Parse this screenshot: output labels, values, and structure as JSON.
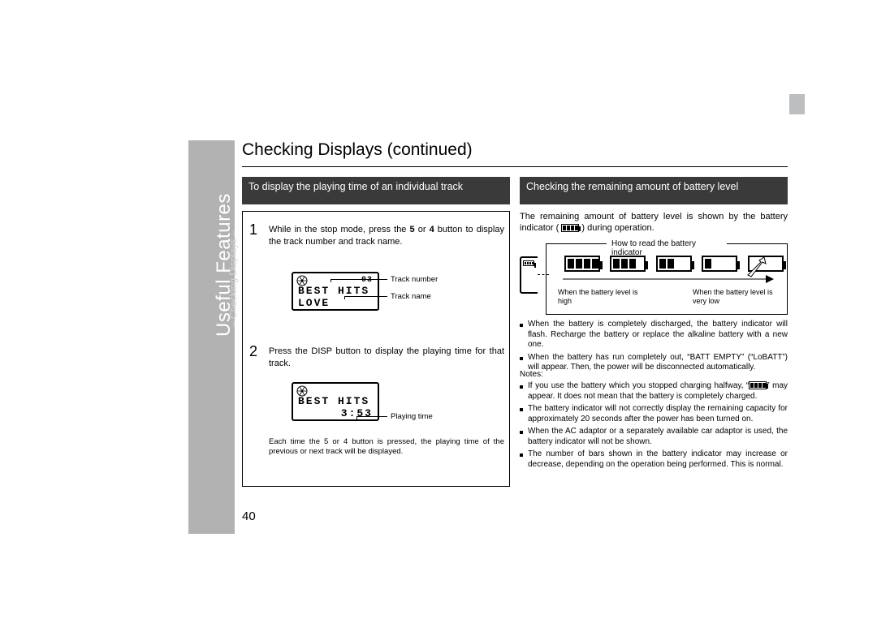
{
  "swatch_colors": [
    "#fff200",
    "#ec008c",
    "#2e3192",
    "#00a651",
    "#ed1c24",
    "#000000",
    "#f8c1d9",
    "#a3d5f0",
    "#bcbec0"
  ],
  "tab": {
    "main": "Useful Features",
    "sub": "– Checking Displays –"
  },
  "page_number": "40",
  "title": "Checking Displays (continued)",
  "subheader_left": "To display the playing time of an individual track",
  "subheader_right": "Checking the remaining amount of battery level",
  "step1": {
    "num": "1",
    "text_a": "While in the stop mode, press the ",
    "text_b": " or ",
    "text_c": " button to display the track number and track name.",
    "key1": "5",
    "key2": "4",
    "lcd_line1": "BEST HITS",
    "lcd_track": "03",
    "lcd_line2": "LOVE",
    "anno1": "Track number",
    "anno2": "Track name"
  },
  "step2": {
    "num": "2",
    "text": "Press the DISP button to display the playing time for that track.",
    "lcd_line1": "BEST HITS",
    "lcd_time": "3:53",
    "anno": "Playing time"
  },
  "left_footnote": "Each time the 5  or 4  button is pressed, the playing time of the previous or next track will be displayed.",
  "right": {
    "intro_a": "The remaining amount of battery level is shown by the battery indicator ( ",
    "intro_b": " ) during operation.",
    "box_header": "How to read the battery indicator",
    "label_high": "When the battery level is high",
    "label_low": "When the battery level is very low",
    "bullets_a": [
      "When the battery is completely discharged, the battery indicator will flash. Recharge the battery or replace the alkaline battery with a new one.",
      "When the battery has run completely out, “BATT EMPTY” (“LoBATT”) will appear. Then, the power will be disconnected automatically."
    ],
    "notes_label": "Notes:",
    "bullets_b": [
      "If you use the battery which you stopped charging halfway, “ ” may appear. It does not mean that the battery is completely charged.",
      "The battery indicator will not correctly display the remaining capacity for approximately 20 seconds after the power has been turned on.",
      "When the AC adaptor or a separately available car adaptor is used, the battery indicator will not be shown.",
      "The number of bars shown in the battery indicator may increase or decrease, depending on the operation being performed. This is normal."
    ]
  }
}
